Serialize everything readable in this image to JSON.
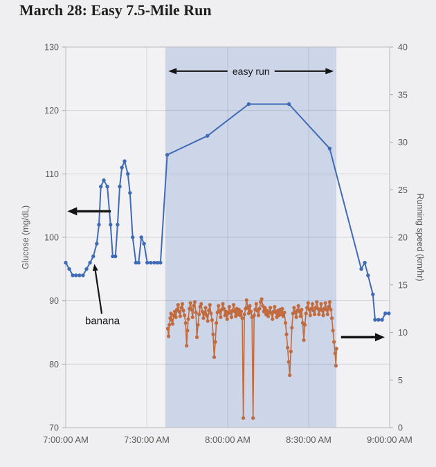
{
  "page": {
    "title": "March 28: Easy 7.5-Mile Run"
  },
  "chart_data": {
    "type": "line",
    "title": "March 28: Easy 7.5-Mile Run",
    "x_axis": {
      "unit": "time of day",
      "tick_labels": [
        "7:00:00 AM",
        "7:30:00 AM",
        "8:00:00 AM",
        "8:30:00 AM",
        "9:00:00 AM"
      ],
      "tick_minutes": [
        0,
        30,
        60,
        90,
        120
      ],
      "range_minutes": [
        0,
        120
      ]
    },
    "y_axis_left": {
      "label": "Glucose (mg/dL)",
      "range": [
        70,
        130
      ],
      "ticks": [
        70,
        80,
        90,
        100,
        110,
        120,
        130
      ]
    },
    "y_axis_right": {
      "label": "Running speed (km/hr)",
      "range": [
        0,
        40
      ],
      "ticks": [
        0,
        5,
        10,
        15,
        20,
        25,
        30,
        35,
        40
      ]
    },
    "grid": true,
    "legend": "none",
    "shaded_region": {
      "label": "easy run",
      "start_minute": 36.9,
      "end_minute": 100.3,
      "color": "#cdd5e8"
    },
    "colors": {
      "glucose_line": "#3f6ab5",
      "speed_line": "#c16b3e",
      "annotation": "#141414",
      "axis_text": "#595959",
      "gridline": "#646c80",
      "plot_background": "#f2f2f4",
      "page_background": "#efeff1"
    },
    "series": [
      {
        "name": "glucose_mg_dl",
        "axis": "left",
        "color": "#3f6ab5",
        "marker": "circle",
        "points": [
          [
            0,
            96
          ],
          [
            1.3,
            95
          ],
          [
            2.6,
            94
          ],
          [
            3.8,
            94
          ],
          [
            5.1,
            94
          ],
          [
            6.4,
            94
          ],
          [
            7.7,
            95
          ],
          [
            9,
            96
          ],
          [
            10.2,
            97
          ],
          [
            11.5,
            99
          ],
          [
            12.3,
            102
          ],
          [
            13,
            108
          ],
          [
            14.1,
            109
          ],
          [
            15.4,
            108
          ],
          [
            16.6,
            102
          ],
          [
            17.4,
            97
          ],
          [
            18.4,
            97
          ],
          [
            19.2,
            102
          ],
          [
            20,
            108
          ],
          [
            20.8,
            111
          ],
          [
            21.8,
            112
          ],
          [
            23,
            110
          ],
          [
            23.8,
            107
          ],
          [
            24.8,
            100
          ],
          [
            26,
            96
          ],
          [
            27,
            96
          ],
          [
            28,
            100
          ],
          [
            29,
            99
          ],
          [
            30.2,
            96
          ],
          [
            31.5,
            96
          ],
          [
            32.8,
            96
          ],
          [
            34,
            96
          ],
          [
            35.1,
            96
          ],
          [
            37.6,
            113
          ],
          [
            52.5,
            116
          ],
          [
            67.8,
            121
          ],
          [
            82.7,
            121
          ],
          [
            97.8,
            114
          ],
          [
            109.5,
            95
          ],
          [
            110.8,
            96
          ],
          [
            112,
            94
          ],
          [
            113.8,
            91
          ],
          [
            114.6,
            87
          ],
          [
            115.9,
            87
          ],
          [
            117.2,
            87
          ],
          [
            118.4,
            88
          ],
          [
            119.7,
            88
          ]
        ]
      },
      {
        "name": "running_speed_km_hr",
        "axis": "right",
        "color": "#c16b3e",
        "marker": "circle",
        "points": [
          [
            37.8,
            10.4
          ],
          [
            38.1,
            9.6
          ],
          [
            38.4,
            10.8
          ],
          [
            38.7,
            11.5
          ],
          [
            39,
            12
          ],
          [
            39.3,
            11.3
          ],
          [
            39.6,
            10.9
          ],
          [
            40,
            11.8
          ],
          [
            40.4,
            12.2
          ],
          [
            40.8,
            11.6
          ],
          [
            41.2,
            12.4
          ],
          [
            41.6,
            12.9
          ],
          [
            42,
            12.2
          ],
          [
            42.4,
            11.7
          ],
          [
            42.8,
            12.6
          ],
          [
            43.2,
            13
          ],
          [
            43.6,
            12.3
          ],
          [
            44,
            11.8
          ],
          [
            44.4,
            11
          ],
          [
            44.8,
            8.6
          ],
          [
            45.1,
            10.2
          ],
          [
            45.4,
            11.4
          ],
          [
            45.8,
            12.5
          ],
          [
            46.2,
            13.1
          ],
          [
            46.6,
            12.4
          ],
          [
            47,
            11.6
          ],
          [
            47.4,
            12.8
          ],
          [
            47.8,
            13.2
          ],
          [
            48.2,
            12.1
          ],
          [
            48.6,
            9.5
          ],
          [
            49,
            10.8
          ],
          [
            49.4,
            11.9
          ],
          [
            49.8,
            12.7
          ],
          [
            50.2,
            13
          ],
          [
            50.6,
            12.2
          ],
          [
            51,
            11.5
          ],
          [
            51.4,
            12
          ],
          [
            51.8,
            12.6
          ],
          [
            52.2,
            11.8
          ],
          [
            52.6,
            11.2
          ],
          [
            53,
            12.3
          ],
          [
            53.4,
            12.9
          ],
          [
            53.8,
            12
          ],
          [
            54.2,
            11.3
          ],
          [
            54.6,
            9.8
          ],
          [
            55,
            7.4
          ],
          [
            55.4,
            9
          ],
          [
            55.8,
            11
          ],
          [
            56.2,
            12.1
          ],
          [
            56.6,
            12.8
          ],
          [
            57,
            12.2
          ],
          [
            57.4,
            11.6
          ],
          [
            57.8,
            12.4
          ],
          [
            58.2,
            13
          ],
          [
            58.6,
            12.5
          ],
          [
            59,
            11.8
          ],
          [
            59.4,
            12.2
          ],
          [
            59.8,
            11.4
          ],
          [
            60.2,
            12
          ],
          [
            60.6,
            12.7
          ],
          [
            61,
            12.1
          ],
          [
            61.4,
            11.6
          ],
          [
            61.8,
            12.3
          ],
          [
            62.2,
            12.9
          ],
          [
            62.6,
            12.2
          ],
          [
            63,
            11.7
          ],
          [
            63.4,
            12.5
          ],
          [
            63.8,
            11.9
          ],
          [
            64.2,
            12.4
          ],
          [
            64.6,
            11.8
          ],
          [
            65,
            12.2
          ],
          [
            65.4,
            11.5
          ],
          [
            65.8,
            1
          ],
          [
            66.2,
            11.9
          ],
          [
            66.6,
            12.5
          ],
          [
            67,
            13.4
          ],
          [
            67.4,
            12.6
          ],
          [
            67.8,
            12
          ],
          [
            68.2,
            12.8
          ],
          [
            68.6,
            12.2
          ],
          [
            69,
            11.6
          ],
          [
            69.4,
            1
          ],
          [
            69.8,
            11.8
          ],
          [
            70.2,
            12.4
          ],
          [
            70.6,
            13
          ],
          [
            71,
            12.3
          ],
          [
            71.4,
            11.8
          ],
          [
            71.8,
            12.5
          ],
          [
            72.2,
            13.2
          ],
          [
            72.6,
            13.5
          ],
          [
            73,
            12.8
          ],
          [
            73.4,
            12.2
          ],
          [
            73.8,
            12.6
          ],
          [
            74.2,
            11.9
          ],
          [
            74.6,
            12.3
          ],
          [
            75,
            11.7
          ],
          [
            75.4,
            12.1
          ],
          [
            75.8,
            12.6
          ],
          [
            76.2,
            12
          ],
          [
            76.6,
            11.4
          ],
          [
            77,
            12.2
          ],
          [
            77.4,
            12.7
          ],
          [
            77.8,
            12.1
          ],
          [
            78.2,
            11.6
          ],
          [
            78.6,
            12.3
          ],
          [
            79,
            11.8
          ],
          [
            79.4,
            12.4
          ],
          [
            79.8,
            11.9
          ],
          [
            80.2,
            12.5
          ],
          [
            80.6,
            11.7
          ],
          [
            81,
            12.1
          ],
          [
            81.4,
            11
          ],
          [
            81.8,
            9.8
          ],
          [
            82.2,
            8.4
          ],
          [
            82.6,
            6.9
          ],
          [
            83,
            5.5
          ],
          [
            83.4,
            8
          ],
          [
            83.8,
            10.5
          ],
          [
            84.2,
            12
          ],
          [
            84.6,
            12.6
          ],
          [
            85,
            12.1
          ],
          [
            85.4,
            11.6
          ],
          [
            85.8,
            12.3
          ],
          [
            86.2,
            12.8
          ],
          [
            86.6,
            12.2
          ],
          [
            87,
            11.7
          ],
          [
            87.4,
            12.4
          ],
          [
            87.8,
            11
          ],
          [
            88.2,
            9.2
          ],
          [
            88.6,
            10.8
          ],
          [
            89,
            12
          ],
          [
            89.4,
            12.6
          ],
          [
            89.8,
            13.1
          ],
          [
            90.2,
            12.4
          ],
          [
            90.6,
            11.8
          ],
          [
            91,
            12.5
          ],
          [
            91.4,
            13
          ],
          [
            91.8,
            12.3
          ],
          [
            92.2,
            11.9
          ],
          [
            92.6,
            12.6
          ],
          [
            93,
            13.2
          ],
          [
            93.4,
            12.5
          ],
          [
            93.8,
            11.9
          ],
          [
            94.2,
            12.4
          ],
          [
            94.6,
            13
          ],
          [
            95,
            12.3
          ],
          [
            95.4,
            11.8
          ],
          [
            95.8,
            12.5
          ],
          [
            96.2,
            13.1
          ],
          [
            96.6,
            12.4
          ],
          [
            97,
            11.9
          ],
          [
            97.4,
            12.7
          ],
          [
            97.8,
            13.2
          ],
          [
            98.2,
            12.4
          ],
          [
            98.6,
            11.5
          ],
          [
            99,
            10.2
          ],
          [
            99.4,
            9
          ],
          [
            99.8,
            7.8
          ],
          [
            100.1,
            6.5
          ],
          [
            100.3,
            8.3
          ]
        ]
      }
    ],
    "annotations": [
      {
        "id": "easy-run-label",
        "text": "easy run",
        "type": "double-arrow",
        "minute_from": 38,
        "minute_to": 99.3,
        "glucose_y": 126.2
      },
      {
        "id": "banana-label",
        "text": "banana",
        "type": "arrow",
        "text_minute": 13.6,
        "text_glucose": 86.3,
        "tip_minute": 10.6,
        "tip_glucose": 95.8
      },
      {
        "id": "glucose-axis-arrow",
        "text": "",
        "type": "arrow-left",
        "minute_from": 16.7,
        "minute_to": 0.6,
        "glucose_y": 104.1
      },
      {
        "id": "speed-axis-arrow",
        "text": "",
        "type": "arrow-right",
        "minute_from": 102,
        "minute_to": 118.2,
        "speed_y": 9.5
      }
    ]
  }
}
